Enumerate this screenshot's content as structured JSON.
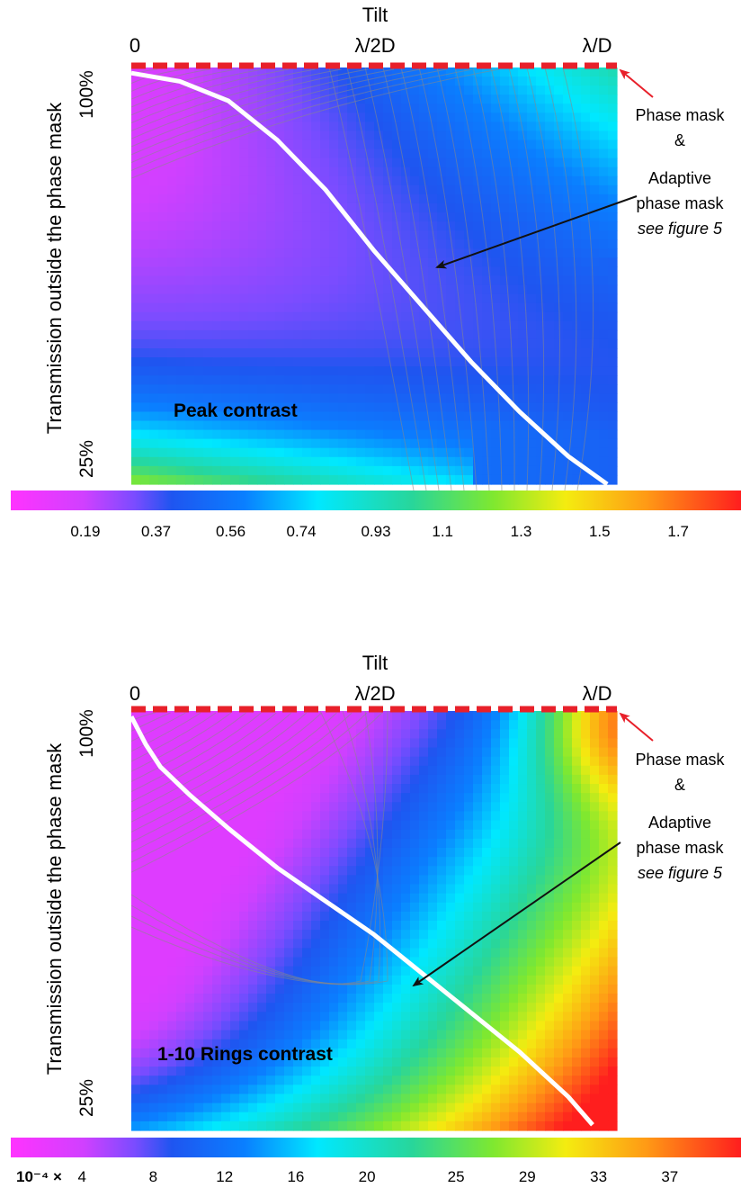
{
  "colors": {
    "dash": "#e8202a",
    "mask_curve": "#ffffff",
    "arrow": "#111111",
    "arrow_red": "#e8202a",
    "colorscale": [
      "#ff33ff",
      "#d040ff",
      "#7a4cff",
      "#1f55f0",
      "#0a7fff",
      "#00e8ff",
      "#28d69a",
      "#7ee830",
      "#f4ec10",
      "#ff9a15",
      "#ff1e1e"
    ]
  },
  "chart_data": [
    {
      "type": "heatmap",
      "title": "Tilt",
      "xlabel": "Tilt",
      "ylabel": "Transmission outside the phase mask",
      "x_ticks": [
        "0",
        "λ/2D",
        "λ/D"
      ],
      "y_ticks": [
        "100%",
        "25%"
      ],
      "xlim": [
        0,
        1
      ],
      "ylim": [
        0.25,
        1.0
      ],
      "x_unit": "λ/D",
      "panel_label": "Peak contrast",
      "annotation": {
        "line1": "Phase mask",
        "line2": "&",
        "line3": "Adaptive",
        "line4": "phase mask",
        "line5": "see figure 5"
      },
      "adaptive_curve": {
        "x": [
          0.0,
          0.1,
          0.2,
          0.3,
          0.4,
          0.5,
          0.6,
          0.7,
          0.8,
          0.9,
          0.98
        ],
        "y": [
          0.99,
          0.975,
          0.94,
          0.87,
          0.78,
          0.67,
          0.57,
          0.47,
          0.38,
          0.3,
          0.25
        ]
      },
      "phase_mask_line": {
        "x": [
          0,
          1
        ],
        "y": [
          1.0,
          1.0
        ]
      },
      "colorbar": {
        "tick_labels": [
          "0.19",
          "0.37",
          "0.56",
          "0.74",
          "0.93",
          "1.1",
          "1.3",
          "1.5",
          "1.7"
        ],
        "ticks": [
          0.19,
          0.37,
          0.56,
          0.74,
          0.93,
          1.1,
          1.3,
          1.5,
          1.7
        ],
        "range": [
          0.0,
          1.86
        ],
        "prefix": ""
      }
    },
    {
      "type": "heatmap",
      "title": "Tilt",
      "xlabel": "Tilt",
      "ylabel": "Transmission outside the phase mask",
      "x_ticks": [
        "0",
        "λ/2D",
        "λ/D"
      ],
      "y_ticks": [
        "100%",
        "25%"
      ],
      "xlim": [
        0,
        1
      ],
      "ylim": [
        0.25,
        1.0
      ],
      "x_unit": "λ/D",
      "panel_label": "1-10 Rings contrast",
      "annotation": {
        "line1": "Phase mask",
        "line2": "&",
        "line3": "Adaptive",
        "line4": "phase mask",
        "line5": "see figure 5"
      },
      "adaptive_curve": {
        "x": [
          0.0,
          0.03,
          0.06,
          0.12,
          0.2,
          0.3,
          0.4,
          0.5,
          0.6,
          0.7,
          0.8,
          0.9,
          0.95
        ],
        "y": [
          0.99,
          0.94,
          0.9,
          0.85,
          0.79,
          0.72,
          0.66,
          0.6,
          0.53,
          0.46,
          0.39,
          0.31,
          0.26
        ]
      },
      "phase_mask_line": {
        "x": [
          0,
          1
        ],
        "y": [
          1.0,
          1.0
        ]
      },
      "colorbar": {
        "tick_labels": [
          "4",
          "8",
          "12",
          "16",
          "20",
          "25",
          "29",
          "33",
          "37"
        ],
        "ticks": [
          4,
          8,
          12,
          16,
          20,
          25,
          29,
          33,
          37
        ],
        "range": [
          0,
          41
        ],
        "prefix": "10⁻⁴ ×"
      }
    }
  ]
}
